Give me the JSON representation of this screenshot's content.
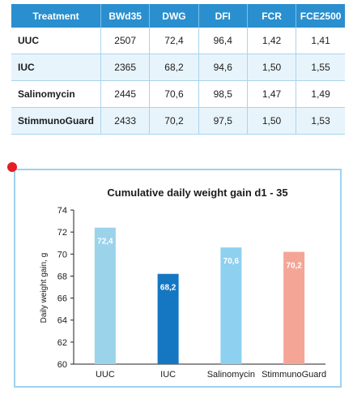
{
  "table": {
    "headers": [
      "Treatment",
      "BWd35",
      "DWG",
      "DFI",
      "FCR",
      "FCE2500"
    ],
    "rows": [
      [
        "UUC",
        "2507",
        "72,4",
        "96,4",
        "1,42",
        "1,41"
      ],
      [
        "IUC",
        "2365",
        "68,2",
        "94,6",
        "1,50",
        "1,55"
      ],
      [
        "Salinomycin",
        "2445",
        "70,6",
        "98,5",
        "1,47",
        "1,49"
      ],
      [
        "StimmunoGuard",
        "2433",
        "70,2",
        "97,5",
        "1,50",
        "1,53"
      ]
    ]
  },
  "chart_data": {
    "type": "bar",
    "title": "Cumulative daily weight gain d1 - 35",
    "ylabel": "Daily weight gain, g",
    "xlabel": "",
    "categories": [
      "UUC",
      "IUC",
      "Salinomycin",
      "StimmunoGuard"
    ],
    "values": [
      72.4,
      68.2,
      70.6,
      70.2
    ],
    "value_labels": [
      "72,4",
      "68,2",
      "70,6",
      "70,2"
    ],
    "colors": [
      "#9bd3ea",
      "#1577c2",
      "#8ed0ef",
      "#f4a596"
    ],
    "ylim": [
      60,
      74
    ],
    "yticks": [
      60,
      62,
      64,
      66,
      68,
      70,
      72,
      74
    ],
    "grid": false,
    "legend": "none"
  }
}
